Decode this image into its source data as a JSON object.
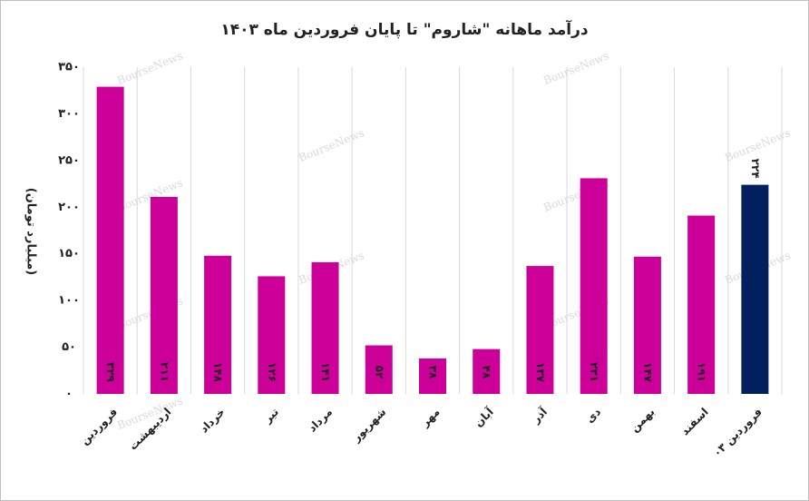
{
  "chart_data": {
    "type": "bar",
    "title": "درآمد ماهانه \"شاروم\" تا پایان فروردین ماه ۱۴۰۳",
    "y_label": "(میلیارد تومان)",
    "watermark": "BourseNews",
    "categories": [
      "فروردین",
      "اردیبهشت",
      "خرداد",
      "تیر",
      "مرداد",
      "شهریور",
      "مهر",
      "آبان",
      "آذر",
      "دی",
      "بهمن",
      "اسفند",
      "فروردین ۰۳"
    ],
    "values": [
      329,
      211,
      148,
      126,
      141,
      52,
      38,
      48,
      137,
      231,
      147,
      191,
      224
    ],
    "value_labels": [
      "۳۲۹",
      "۲۱۱",
      "۱۴۸",
      "۱۲۶",
      "۱۴۱",
      "۵۲",
      "۳۸",
      "۴۸",
      "۱۳۷",
      "۲۳۱",
      "۱۴۷",
      "۱۹۱",
      "۲۲۴"
    ],
    "colors": [
      "#cc0099",
      "#cc0099",
      "#cc0099",
      "#cc0099",
      "#cc0099",
      "#cc0099",
      "#cc0099",
      "#cc0099",
      "#cc0099",
      "#cc0099",
      "#cc0099",
      "#cc0099",
      "#002060"
    ],
    "ylim": [
      0,
      350
    ],
    "yticks": [
      {
        "value": 0,
        "label": "۰"
      },
      {
        "value": 50,
        "label": "۵۰"
      },
      {
        "value": 100,
        "label": "۱۰۰"
      },
      {
        "value": 150,
        "label": "۱۵۰"
      },
      {
        "value": 200,
        "label": "۲۰۰"
      },
      {
        "value": 250,
        "label": "۲۵۰"
      },
      {
        "value": 300,
        "label": "۳۰۰"
      },
      {
        "value": 350,
        "label": "۳۵۰"
      }
    ],
    "grid": true
  }
}
